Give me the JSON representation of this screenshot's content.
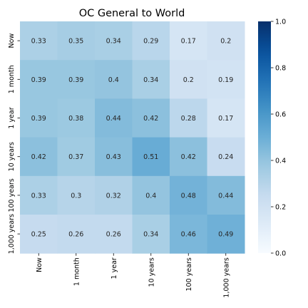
{
  "chart_data": {
    "type": "heatmap",
    "title": "OC General to World",
    "xlabel": "",
    "ylabel": "",
    "x_categories": [
      "Now",
      "1 month",
      "1 year",
      "10 years",
      "100 years",
      "1,000 years"
    ],
    "y_categories": [
      "Now",
      "1 month",
      "1 year",
      "10 years",
      "100 years",
      "1,000 years"
    ],
    "values": [
      [
        0.33,
        0.35,
        0.34,
        0.29,
        0.17,
        0.2
      ],
      [
        0.39,
        0.39,
        0.4,
        0.34,
        0.2,
        0.19
      ],
      [
        0.39,
        0.38,
        0.44,
        0.42,
        0.28,
        0.17
      ],
      [
        0.42,
        0.37,
        0.43,
        0.51,
        0.42,
        0.24
      ],
      [
        0.33,
        0.3,
        0.32,
        0.4,
        0.48,
        0.44
      ],
      [
        0.25,
        0.26,
        0.26,
        0.34,
        0.46,
        0.49
      ]
    ],
    "value_labels": [
      [
        "0.33",
        "0.35",
        "0.34",
        "0.29",
        "0.17",
        "0.2"
      ],
      [
        "0.39",
        "0.39",
        "0.4",
        "0.34",
        "0.2",
        "0.19"
      ],
      [
        "0.39",
        "0.38",
        "0.44",
        "0.42",
        "0.28",
        "0.17"
      ],
      [
        "0.42",
        "0.37",
        "0.43",
        "0.51",
        "0.42",
        "0.24"
      ],
      [
        "0.33",
        "0.3",
        "0.32",
        "0.4",
        "0.48",
        "0.44"
      ],
      [
        "0.25",
        "0.26",
        "0.26",
        "0.34",
        "0.46",
        "0.49"
      ]
    ],
    "colorbar": {
      "range": [
        0,
        1
      ],
      "ticks": [
        0.0,
        0.2,
        0.4,
        0.6,
        0.8,
        1.0
      ],
      "tick_labels": [
        "0.0",
        "0.2",
        "0.4",
        "0.6",
        "0.8",
        "1.0"
      ],
      "colormap": "Blues",
      "low_color": "#f7fbff",
      "high_color": "#08306b"
    },
    "grid": false,
    "legend": "colorbar-right"
  }
}
